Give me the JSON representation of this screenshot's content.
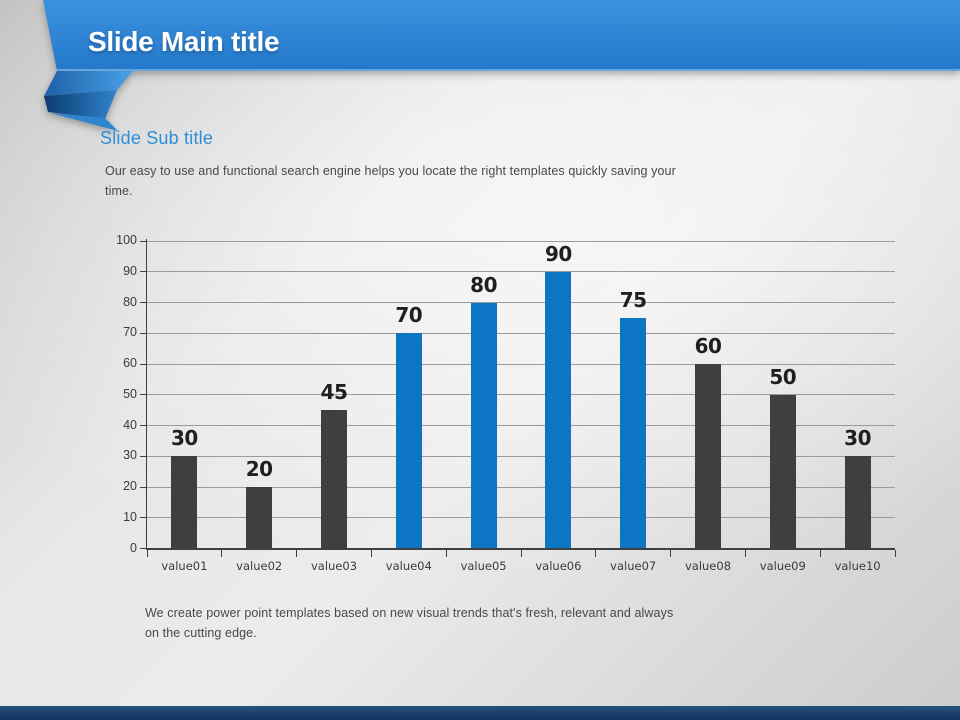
{
  "slide": {
    "title": "Slide Main title",
    "subtitle": "Slide Sub title",
    "body_text": "Our easy to use and functional search engine helps you locate the right templates quickly saving your time.",
    "footer_text": "We create power point templates based on new visual trends that's fresh, relevant and always on the cutting edge."
  },
  "colors": {
    "banner_blue": "#2a84d4",
    "banner_blue_dark": "#2478cc",
    "ribbon_fold_dark": "#0d3a6e",
    "ribbon_fold_mid": "#1d60a8",
    "ribbon_fold_light": "#4aa1e7",
    "subtitle_blue": "#2e8fd8",
    "body_gray": "#45494e",
    "bar_dark": "#3f3f3f",
    "bar_blue": "#0d76c4",
    "value_label_dark": "#1f1f1f",
    "axis_dark": "#404040",
    "tick_label_gray": "#3b3b3b",
    "gridline_gray": "#9b9b9b",
    "footer_bar_navy": "#1b3a64"
  },
  "chart_data": {
    "type": "bar",
    "title": "",
    "xlabel": "",
    "ylabel": "",
    "categories": [
      "value01",
      "value02",
      "value03",
      "value04",
      "value05",
      "value06",
      "value07",
      "value08",
      "value09",
      "value10"
    ],
    "values": [
      30,
      20,
      45,
      70,
      80,
      90,
      75,
      60,
      50,
      30
    ],
    "bar_colors": [
      "#3f3f3f",
      "#3f3f3f",
      "#3f3f3f",
      "#0d76c4",
      "#0d76c4",
      "#0d76c4",
      "#0d76c4",
      "#3f3f3f",
      "#3f3f3f",
      "#3f3f3f"
    ],
    "ylim": [
      0,
      100
    ],
    "yticks": [
      0,
      10,
      20,
      30,
      40,
      50,
      60,
      70,
      80,
      90,
      100
    ],
    "grid": true,
    "legend": false,
    "data_labels": true
  }
}
